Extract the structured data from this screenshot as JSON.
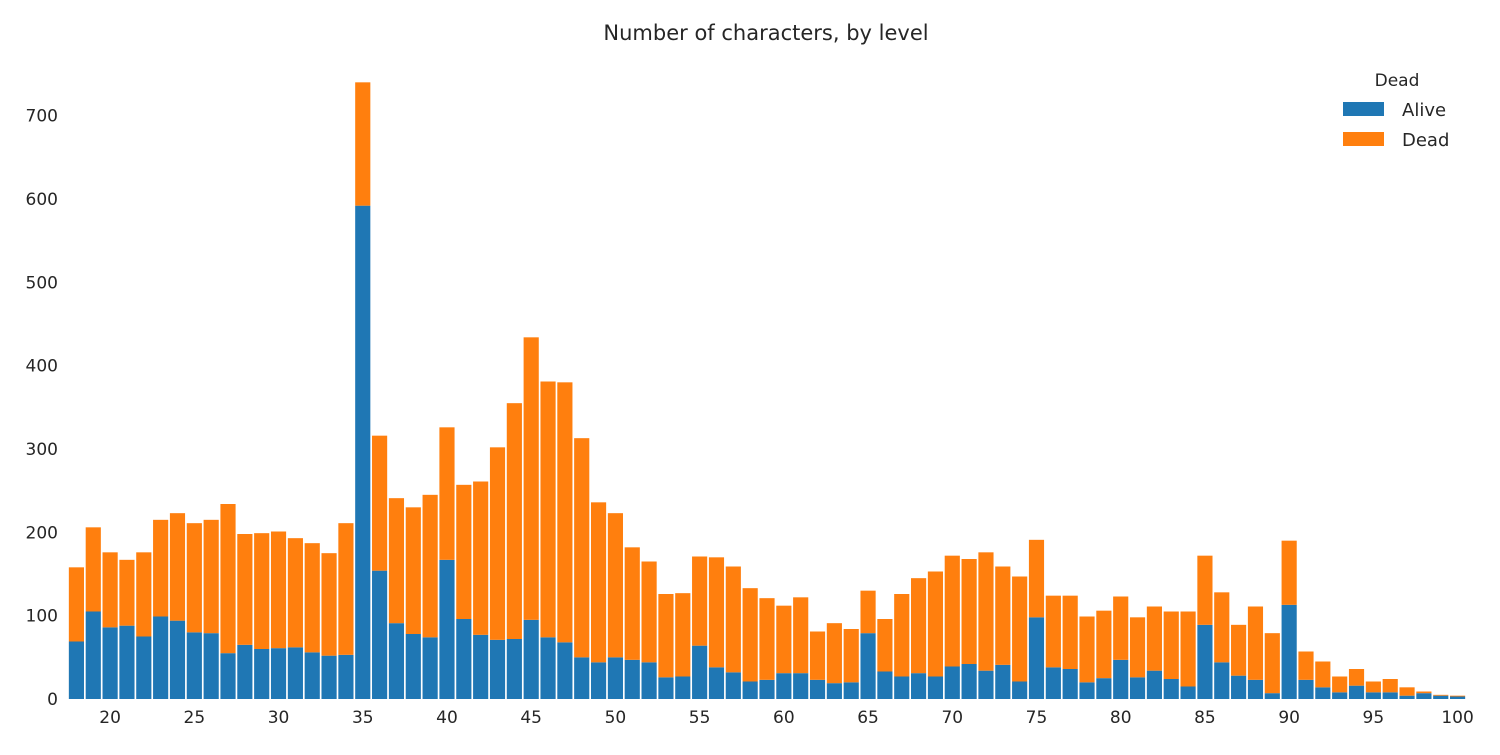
{
  "chart_data": {
    "type": "bar",
    "stacked": true,
    "title": "Number of characters, by level",
    "xlabel": "",
    "ylabel": "",
    "x": [
      18,
      19,
      20,
      21,
      22,
      23,
      24,
      25,
      26,
      27,
      28,
      29,
      30,
      31,
      32,
      33,
      34,
      35,
      36,
      37,
      38,
      39,
      40,
      41,
      42,
      43,
      44,
      45,
      46,
      47,
      48,
      49,
      50,
      51,
      52,
      53,
      54,
      55,
      56,
      57,
      58,
      59,
      60,
      61,
      62,
      63,
      64,
      65,
      66,
      67,
      68,
      69,
      70,
      71,
      72,
      73,
      74,
      75,
      76,
      77,
      78,
      79,
      80,
      81,
      82,
      83,
      84,
      85,
      86,
      87,
      88,
      89,
      90,
      91,
      92,
      93,
      94,
      95,
      96,
      97,
      98,
      99,
      100
    ],
    "series": [
      {
        "name": "Alive",
        "color": "#1f77b4",
        "values": [
          69,
          105,
          86,
          88,
          75,
          99,
          94,
          80,
          79,
          55,
          65,
          60,
          61,
          62,
          56,
          52,
          53,
          592,
          154,
          91,
          78,
          74,
          167,
          96,
          77,
          71,
          72,
          95,
          74,
          68,
          50,
          44,
          50,
          47,
          44,
          26,
          27,
          64,
          38,
          32,
          21,
          23,
          31,
          31,
          23,
          19,
          20,
          79,
          33,
          27,
          31,
          27,
          39,
          42,
          34,
          41,
          21,
          98,
          38,
          36,
          20,
          25,
          47,
          26,
          34,
          24,
          15,
          89,
          44,
          28,
          23,
          7,
          113,
          23,
          14,
          8,
          16,
          8,
          8,
          4,
          7,
          4,
          3
        ]
      },
      {
        "name": "Dead",
        "color": "#ff7f0e",
        "values": [
          89,
          101,
          90,
          79,
          101,
          116,
          129,
          131,
          136,
          179,
          133,
          139,
          140,
          131,
          131,
          123,
          158,
          148,
          162,
          150,
          152,
          171,
          159,
          161,
          184,
          231,
          283,
          339,
          307,
          312,
          263,
          192,
          173,
          135,
          121,
          100,
          100,
          107,
          132,
          127,
          112,
          98,
          81,
          91,
          58,
          72,
          64,
          51,
          63,
          99,
          114,
          126,
          133,
          126,
          142,
          118,
          126,
          93,
          86,
          88,
          79,
          81,
          76,
          72,
          77,
          81,
          90,
          83,
          84,
          61,
          88,
          72,
          77,
          34,
          31,
          19,
          20,
          13,
          16,
          10,
          2,
          1,
          1
        ]
      }
    ],
    "xticks": [
      20,
      25,
      30,
      35,
      40,
      45,
      50,
      55,
      60,
      65,
      70,
      75,
      80,
      85,
      90,
      95,
      100
    ],
    "yticks": [
      0,
      100,
      200,
      300,
      400,
      500,
      600,
      700
    ],
    "xlim": [
      17.5,
      100.5
    ],
    "ylim": [
      0,
      750
    ],
    "grid": false,
    "legend": {
      "title": "Dead",
      "position": "top-right",
      "entries": [
        "Alive",
        "Dead"
      ]
    }
  }
}
